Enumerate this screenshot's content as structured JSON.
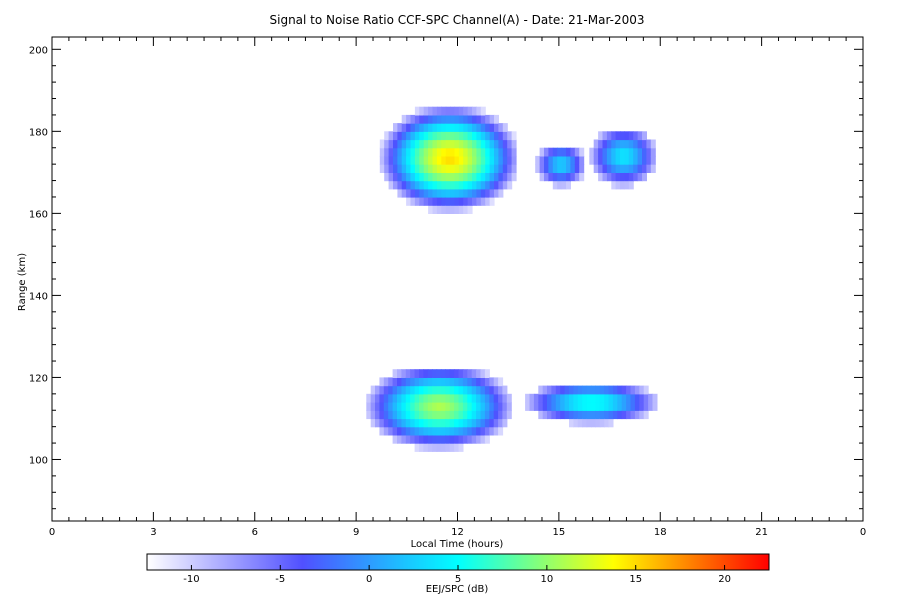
{
  "chart_data": {
    "type": "heatmap",
    "title": "Signal to Noise Ratio CCF-SPC Channel(A) - Date: 21-Mar-2003",
    "xlabel": "Local Time (hours)",
    "ylabel": "Range (km)",
    "x_ticks": [
      "0",
      "3",
      "6",
      "9",
      "12",
      "15",
      "18",
      "21",
      "0"
    ],
    "x_range": [
      0,
      24
    ],
    "y_ticks": [
      "100",
      "120",
      "140",
      "160",
      "180",
      "200"
    ],
    "y_range": [
      85,
      203
    ],
    "colorbar": {
      "label": "EEJ/SPC (dB)",
      "range": [
        -12.5,
        22.5
      ],
      "ticks": [
        "-10",
        "-5",
        "0",
        "5",
        "10",
        "15",
        "20"
      ],
      "colors": [
        "#ffffff",
        "#5050ff",
        "#00ffff",
        "#ffff00",
        "#ff0000"
      ]
    },
    "echo_regions": [
      {
        "name": "upper-main",
        "x0": 9.7,
        "x1": 13.7,
        "ymin": 160,
        "ymax": 185,
        "peak": 15
      },
      {
        "name": "upper-tail-a",
        "x0": 14.3,
        "x1": 15.7,
        "ymin": 166,
        "ymax": 176,
        "peak": 3
      },
      {
        "name": "upper-tail-b",
        "x0": 15.9,
        "x1": 17.8,
        "ymin": 166,
        "ymax": 180,
        "peak": 4
      },
      {
        "name": "lower-main",
        "x0": 9.3,
        "x1": 13.5,
        "ymin": 102,
        "ymax": 122,
        "peak": 11
      },
      {
        "name": "lower-tail",
        "x0": 14.0,
        "x1": 17.8,
        "ymin": 108,
        "ymax": 118,
        "peak": 6
      }
    ]
  }
}
